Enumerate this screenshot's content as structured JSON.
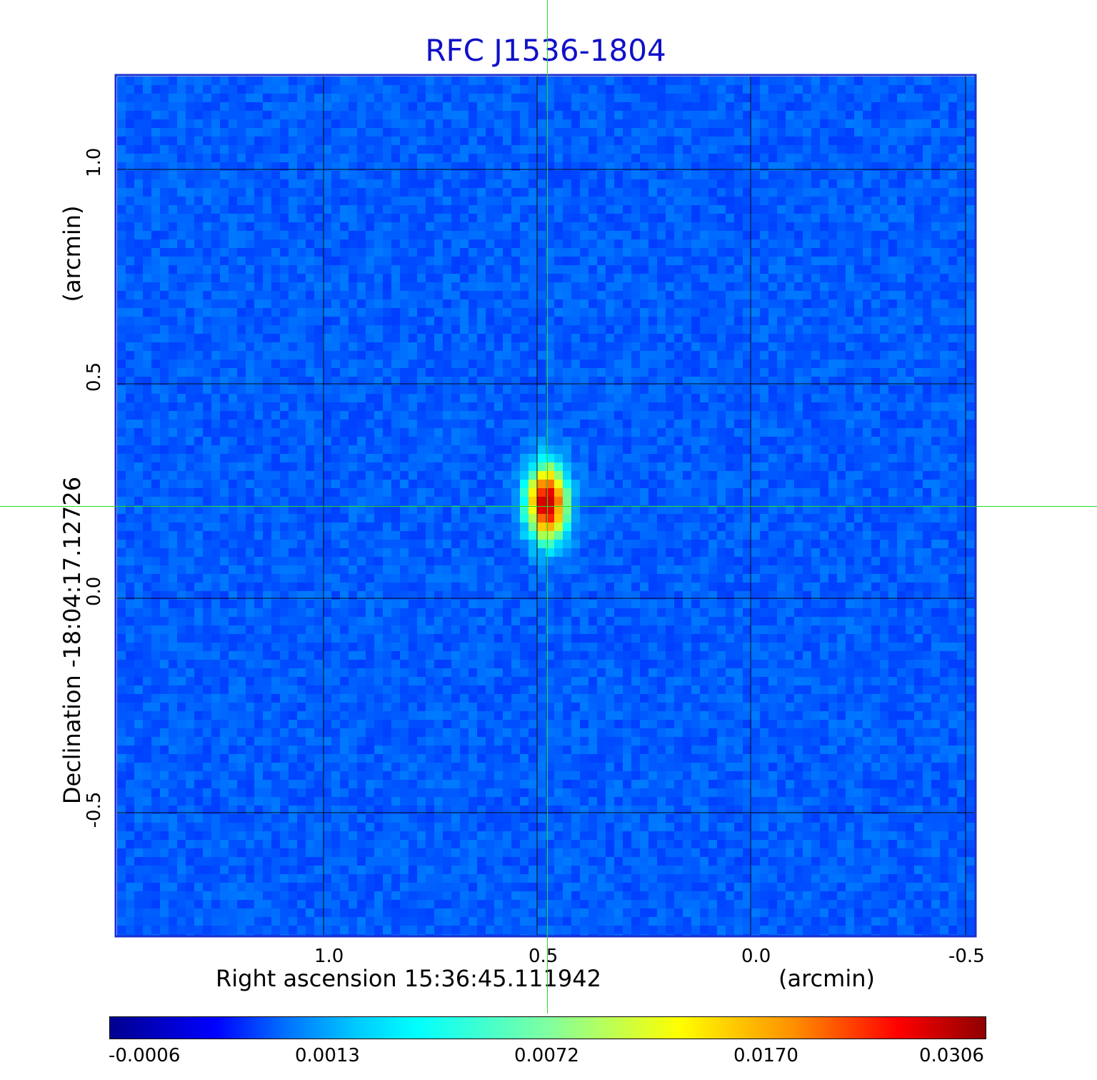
{
  "title": "RFC J1536-1804",
  "x_axis": {
    "label": "Right ascension  15:36:45.111942",
    "unit": "(arcmin)",
    "ticks": [
      "1.0",
      "0.5",
      "0.0",
      "-0.5"
    ]
  },
  "y_axis": {
    "label": "Declination  -18:04:17.12726",
    "unit": "(arcmin)",
    "ticks": [
      "1.0",
      "0.5",
      "0.0",
      "-0.5"
    ]
  },
  "colorbar": {
    "ticks": [
      "-0.0006",
      "0.0013",
      "0.0072",
      "0.0170",
      "0.0306"
    ],
    "colormap": "jet"
  },
  "colors": {
    "title": "#1010c8",
    "background_map": "#1e4cf0",
    "crosshair": "#22dd22",
    "grid": "#000000"
  }
}
